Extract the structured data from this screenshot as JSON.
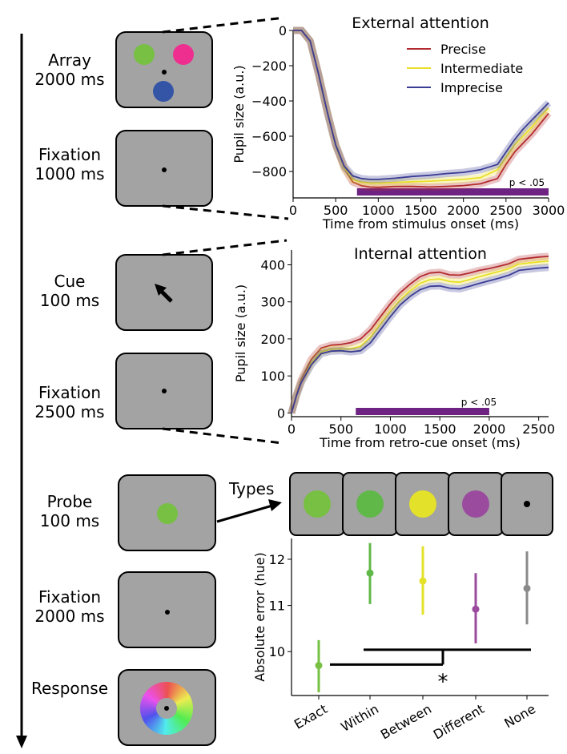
{
  "trial": {
    "steps": [
      {
        "name": "Array",
        "dur": "2000 ms"
      },
      {
        "name": "Fixation",
        "dur": "1000 ms"
      },
      {
        "name": "Cue",
        "dur": "100 ms"
      },
      {
        "name": "Fixation",
        "dur": "2500 ms"
      },
      {
        "name": "Probe",
        "dur": "100 ms"
      },
      {
        "name": "Fixation",
        "dur": "2000 ms"
      },
      {
        "name": "Response",
        "dur": ""
      }
    ],
    "types_label": "Types",
    "colors": {
      "green": "#77c043",
      "magenta": "#ee2f90",
      "blue": "#3455a6",
      "screen": "#a3a3a3"
    }
  },
  "chart_data": [
    {
      "type": "line",
      "title": "External attention",
      "xlabel": "Time from stimulus onset (ms)",
      "ylabel": "Pupil size (a.u.)",
      "xlim": [
        0,
        3000
      ],
      "ylim": [
        -950,
        0
      ],
      "xticks": [
        0,
        500,
        1000,
        1500,
        2000,
        2500,
        3000
      ],
      "yticks": [
        0,
        -200,
        -400,
        -600,
        -800
      ],
      "legend": "top-right",
      "sig_label": "p < .05",
      "sig_range": [
        750,
        3000
      ],
      "x": [
        0,
        100,
        200,
        300,
        400,
        500,
        600,
        700,
        800,
        900,
        1000,
        1200,
        1400,
        1600,
        1800,
        2000,
        2200,
        2400,
        2500,
        2600,
        2700,
        2800,
        2900,
        3000
      ],
      "series": [
        {
          "name": "Precise",
          "color": "#b22a2e",
          "values": [
            0,
            0,
            -60,
            -250,
            -460,
            -650,
            -780,
            -860,
            -880,
            -888,
            -890,
            -885,
            -885,
            -888,
            -885,
            -880,
            -870,
            -840,
            -760,
            -690,
            -640,
            -590,
            -530,
            -470
          ]
        },
        {
          "name": "Intermediate",
          "color": "#e9df2b",
          "values": [
            0,
            0,
            -60,
            -250,
            -460,
            -650,
            -780,
            -845,
            -860,
            -865,
            -865,
            -862,
            -858,
            -855,
            -850,
            -845,
            -835,
            -790,
            -720,
            -650,
            -600,
            -550,
            -490,
            -440
          ]
        },
        {
          "name": "Imprecise",
          "color": "#3b3c94",
          "values": [
            0,
            0,
            -60,
            -250,
            -460,
            -650,
            -770,
            -825,
            -840,
            -845,
            -845,
            -838,
            -828,
            -822,
            -812,
            -805,
            -790,
            -760,
            -690,
            -620,
            -560,
            -510,
            -460,
            -410
          ]
        }
      ]
    },
    {
      "type": "line",
      "title": "Internal attention",
      "xlabel": "Time from retro-cue onset (ms)",
      "ylabel": "Pupil size (a.u.)",
      "xlim": [
        0,
        2600
      ],
      "ylim": [
        -10,
        440
      ],
      "xticks": [
        0,
        500,
        1000,
        1500,
        2000,
        2500
      ],
      "yticks": [
        0,
        100,
        200,
        300,
        400
      ],
      "sig_label": "p < .05",
      "sig_range": [
        650,
        2000
      ],
      "x": [
        0,
        50,
        100,
        200,
        300,
        400,
        500,
        600,
        700,
        800,
        900,
        1000,
        1100,
        1200,
        1300,
        1400,
        1500,
        1600,
        1700,
        1800,
        1900,
        2000,
        2100,
        2200,
        2300,
        2400,
        2500,
        2600
      ],
      "series": [
        {
          "name": "Precise",
          "color": "#b22a2e",
          "values": [
            0,
            50,
            90,
            145,
            175,
            183,
            185,
            190,
            200,
            225,
            260,
            295,
            325,
            348,
            368,
            378,
            380,
            373,
            372,
            378,
            385,
            390,
            396,
            403,
            415,
            418,
            421,
            423
          ]
        },
        {
          "name": "Intermediate",
          "color": "#e9df2b",
          "values": [
            0,
            48,
            85,
            135,
            165,
            172,
            173,
            173,
            180,
            205,
            240,
            275,
            305,
            330,
            350,
            360,
            362,
            355,
            353,
            360,
            368,
            375,
            382,
            390,
            402,
            405,
            408,
            410
          ]
        },
        {
          "name": "Imprecise",
          "color": "#3b3c94",
          "values": [
            0,
            47,
            83,
            130,
            160,
            167,
            168,
            165,
            168,
            190,
            225,
            260,
            292,
            315,
            333,
            342,
            343,
            337,
            335,
            342,
            350,
            357,
            364,
            372,
            385,
            388,
            391,
            393
          ]
        }
      ]
    },
    {
      "type": "scatter",
      "ylabel": "Absolute error (hue)",
      "categories": [
        "Exact",
        "Within",
        "Between",
        "Different",
        "None"
      ],
      "colors": [
        "#77c043",
        "#60b848",
        "#e4e12a",
        "#9b4b9e",
        "#8a8a8a"
      ],
      "means": [
        9.7,
        11.7,
        11.53,
        10.92,
        11.37
      ],
      "lower": [
        9.12,
        11.03,
        10.8,
        10.18,
        10.59
      ],
      "upper": [
        10.25,
        12.35,
        12.28,
        11.7,
        12.17
      ],
      "ylim": [
        9.05,
        12.45
      ],
      "yticks": [
        10,
        11,
        12
      ],
      "sig_marker": "*"
    }
  ]
}
